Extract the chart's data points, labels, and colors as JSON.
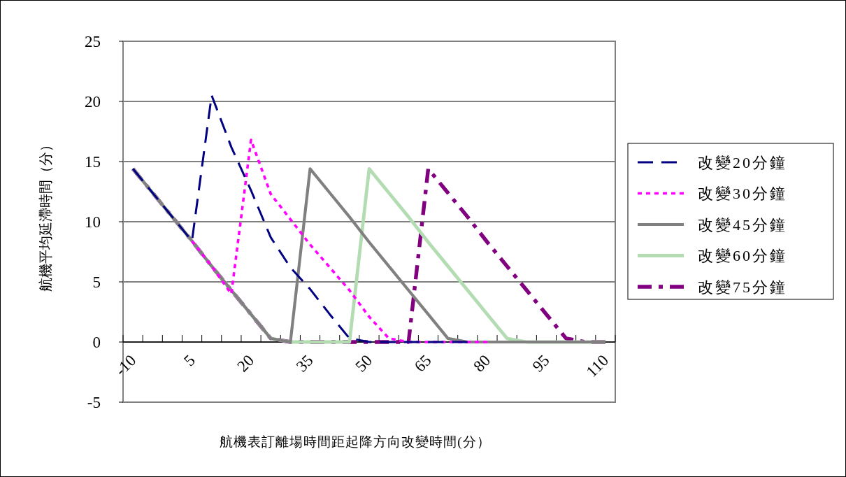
{
  "chart_data": {
    "type": "line",
    "xlabel": "航機表訂離場時間距起降方向改變時間(分）",
    "ylabel": "航機平均延滯時間（分）",
    "categories": [
      "-10",
      null,
      null,
      "5",
      null,
      null,
      "20",
      null,
      null,
      "35",
      null,
      null,
      "50",
      null,
      null,
      "65",
      null,
      null,
      "80",
      null,
      null,
      "95",
      null,
      null,
      "110"
    ],
    "series": [
      {
        "name": "改變20分鐘",
        "color": "#000080",
        "line_style": "dashed",
        "values": [
          14.4,
          12.4,
          10.4,
          8.4,
          20.5,
          16.2,
          12.6,
          8.7,
          6.2,
          4.4,
          2.3,
          0.3,
          0,
          0,
          0,
          0,
          0,
          0,
          null,
          null,
          null,
          null,
          null,
          null,
          null
        ]
      },
      {
        "name": "改變30分鐘",
        "color": "#ff00ff",
        "line_style": "dotted",
        "values": [
          null,
          null,
          null,
          8.4,
          6.3,
          4.0,
          16.8,
          12.3,
          10.2,
          8.1,
          6.2,
          4.3,
          2.1,
          0.3,
          0,
          0,
          0,
          0,
          0,
          null,
          null,
          null,
          null,
          null,
          null
        ]
      },
      {
        "name": "改變45分鐘",
        "color": "#808080",
        "line_style": "solid",
        "values": [
          14.4,
          12.4,
          10.4,
          8.4,
          6.3,
          4.3,
          2.3,
          0.3,
          0,
          14.4,
          12.4,
          10.4,
          8.3,
          6.3,
          4.3,
          2.3,
          0.3,
          0,
          0,
          0,
          0,
          0,
          0,
          0,
          0
        ]
      },
      {
        "name": "改變60分鐘",
        "color": "#b3dcb3",
        "line_style": "solid",
        "values": [
          14.4,
          12.4,
          10.4,
          8.4,
          6.3,
          4.3,
          2.3,
          0.3,
          0,
          0,
          0,
          0,
          14.4,
          12.4,
          10.4,
          8.3,
          6.3,
          4.3,
          2.3,
          0.3,
          0,
          0,
          0,
          0,
          0
        ]
      },
      {
        "name": "改變75分鐘",
        "color": "#800080",
        "line_style": "dashdot",
        "values": [
          14.4,
          12.4,
          10.4,
          8.4,
          6.3,
          4.3,
          2.3,
          0.3,
          0,
          0,
          0,
          0,
          0,
          0,
          0,
          14.4,
          12.4,
          10.4,
          8.3,
          6.3,
          4.3,
          2.3,
          0.3,
          0,
          0
        ]
      }
    ],
    "ylim": [
      -5,
      25
    ],
    "yticks": [
      -5,
      0,
      5,
      10,
      15,
      20,
      25
    ],
    "grid": "y",
    "legend": "right"
  }
}
